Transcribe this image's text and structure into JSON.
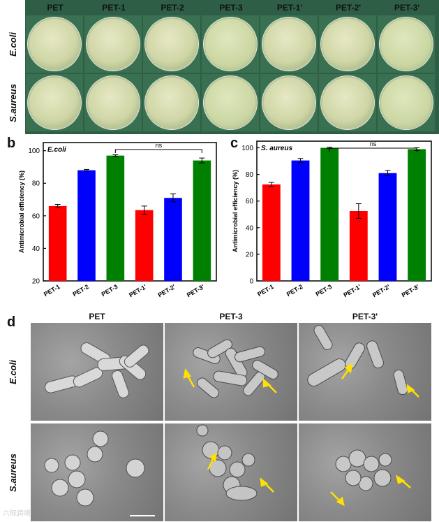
{
  "figure": {
    "panel_letters": {
      "b": "b",
      "c": "c",
      "d": "d"
    },
    "panel_a": {
      "columns": [
        "PET",
        "PET-1",
        "PET-2",
        "PET-3",
        "PET-1'",
        "PET-2'",
        "PET-3'"
      ],
      "rows": [
        "E.coli",
        "S.aureus"
      ]
    },
    "panel_d": {
      "columns": [
        "PET",
        "PET-3",
        "PET-3'"
      ],
      "rows": [
        "E.coli",
        "S.aureus"
      ]
    },
    "watermark": "六际跨境",
    "colors": {
      "red": "#ff0000",
      "blue": "#0000ff",
      "green": "#008000",
      "plate_bg": "#2f5e46",
      "arrow": "#ffe000"
    }
  },
  "chart_data": [
    {
      "type": "bar",
      "panel": "b",
      "title": "E.coli",
      "ylabel": "Antimicrobial efficiency (%)",
      "categories": [
        "PET-1",
        "PET-2",
        "PET-3",
        "PET-1'",
        "PET-2'",
        "PET-3'"
      ],
      "values": [
        66,
        88,
        97,
        63.5,
        71,
        94
      ],
      "errors": [
        1,
        0.5,
        0.5,
        2.5,
        2.5,
        1.5
      ],
      "bar_colors": [
        "#ff0000",
        "#0000ff",
        "#008000",
        "#ff0000",
        "#0000ff",
        "#008000"
      ],
      "ylim": [
        20,
        105
      ],
      "yticks": [
        20,
        40,
        60,
        80,
        100
      ],
      "annotation": {
        "text": "ns",
        "from": 2,
        "to": 5
      }
    },
    {
      "type": "bar",
      "panel": "c",
      "title": "S. aureus",
      "ylabel": "Antimicrobial efficiency (%)",
      "categories": [
        "PET-1",
        "PET-2",
        "PET-3",
        "PET-1'",
        "PET-2'",
        "PET-3'"
      ],
      "values": [
        72.5,
        90.5,
        100,
        52.5,
        81,
        99
      ],
      "errors": [
        1.5,
        1.5,
        0.5,
        5.5,
        2,
        1
      ],
      "bar_colors": [
        "#ff0000",
        "#0000ff",
        "#008000",
        "#ff0000",
        "#0000ff",
        "#008000"
      ],
      "ylim": [
        0,
        105
      ],
      "yticks": [
        0,
        20,
        40,
        60,
        80,
        100
      ],
      "annotation": {
        "text": "ns",
        "from": 2,
        "to": 5
      }
    }
  ]
}
